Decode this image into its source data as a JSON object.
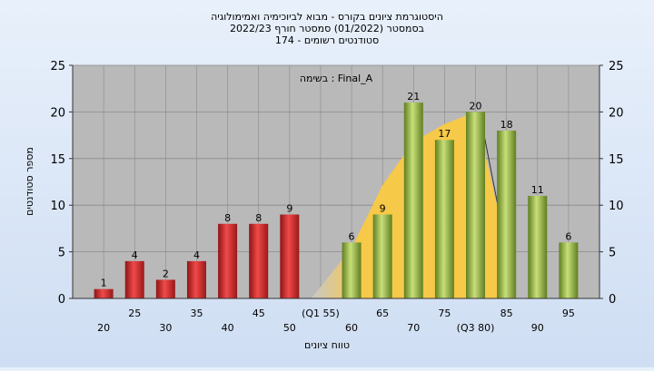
{
  "colors": {
    "low_bar": "#d42a2a",
    "high_bar": "#8fb33f",
    "distribution_area": "#f7c948",
    "distribution_grey": "#c8c8c8",
    "plot_bg": "#b9b9b9",
    "gridline": "#8a8a8a"
  },
  "chart_data": {
    "type": "bar",
    "title_lines": [
      "היסטוגרמת ציונים בקורס - מבוא לביוכימיה ואמימולוגיה",
      "בסמסטר  (01/2022)  סמסטר חורף 2022/23",
      "סטודנטים רשומים - 174"
    ],
    "ylabel": "מספר סטודנטים",
    "xlabel": "טווח ציונים",
    "annotation": "בשימה : Final_A",
    "ylim": [
      0,
      25
    ],
    "y_ticks": [
      0,
      5,
      10,
      15,
      20,
      25
    ],
    "grid": true,
    "categories": [
      "20",
      "25",
      "30",
      "35",
      "40",
      "45",
      "50",
      "(Q1 55)",
      "60",
      "65",
      "70",
      "75",
      "(Q3 80)",
      "85",
      "90",
      "95"
    ],
    "values": [
      1,
      4,
      2,
      4,
      8,
      8,
      9,
      0,
      6,
      9,
      21,
      17,
      20,
      18,
      11,
      6
    ],
    "data_labels": [
      "1",
      "4",
      "2",
      "4",
      "8",
      "8",
      "9",
      "",
      "6",
      "9",
      "21",
      "17",
      "20",
      "18",
      "11",
      "6"
    ],
    "bar_colors": [
      "low",
      "low",
      "low",
      "low",
      "low",
      "low",
      "low",
      "none",
      "high",
      "high",
      "high",
      "high",
      "high",
      "high",
      "high",
      "high"
    ]
  }
}
